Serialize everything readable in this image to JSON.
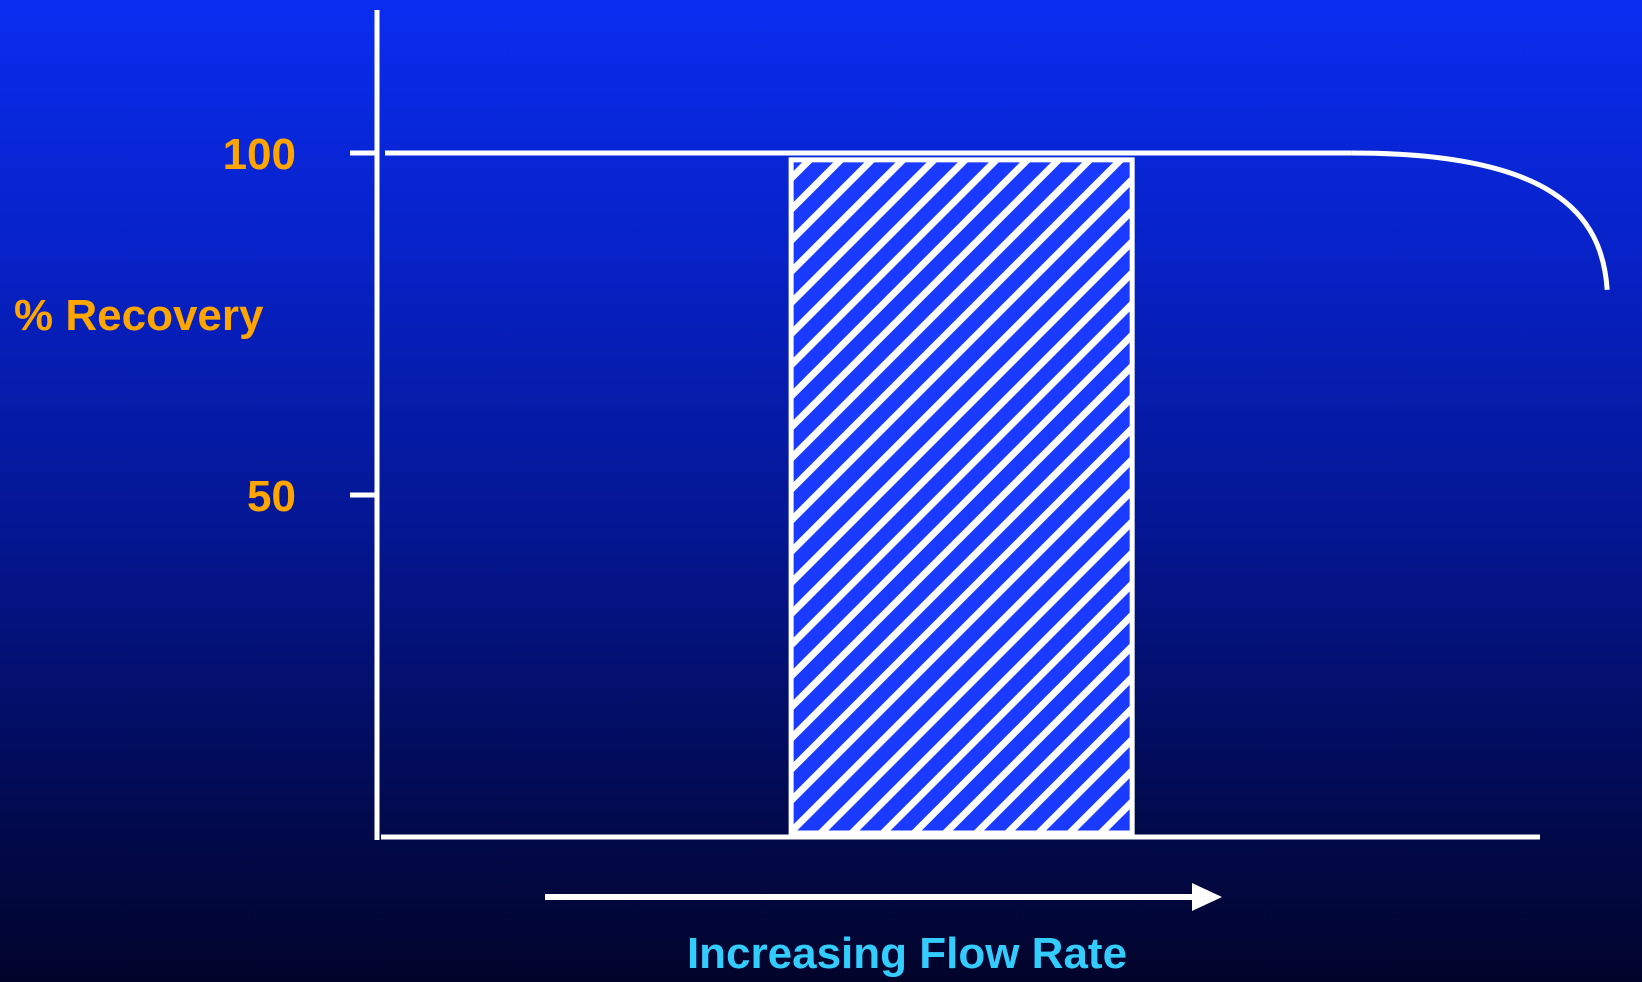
{
  "chart_data": {
    "type": "area",
    "ylabel": "% Recovery",
    "xlabel": "Increasing Flow Rate",
    "ylim": [
      0,
      120
    ],
    "y_ticks": [
      {
        "value": 100,
        "label": "100"
      },
      {
        "value": 50,
        "label": "50"
      }
    ],
    "x_range": [
      0,
      10
    ],
    "recovery_curve": {
      "plateau_value": 100,
      "plateau_end_x": 8,
      "drop_points": [
        [
          8,
          100
        ],
        [
          8.6,
          99
        ],
        [
          9.2,
          95
        ],
        [
          9.7,
          87
        ],
        [
          10.1,
          80
        ]
      ]
    },
    "highlight_band": {
      "x_start": 3.4,
      "x_end": 6.2,
      "y_top": 99,
      "pattern": "diagonal-hatch"
    },
    "flow_arrow": {
      "direction": "right"
    },
    "colors": {
      "axis": "#ffffff",
      "curve": "#ffffff",
      "ytick_text": "#ffa500",
      "ylabel_text": "#ffa500",
      "xlabel_text": "#33ccff",
      "hatch_fill": "#1a3aff",
      "hatch_stroke": "#ffffff"
    }
  }
}
